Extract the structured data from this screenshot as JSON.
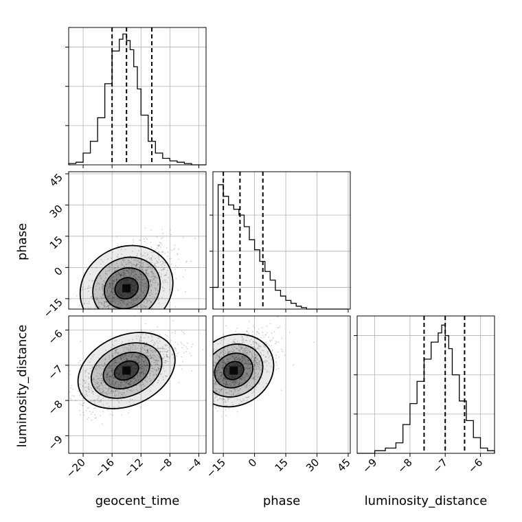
{
  "chart_data": [
    {
      "type": "histogram",
      "parameter": "geocent_time",
      "bin_edges": [
        -22,
        -21,
        -20,
        -19,
        -18,
        -17,
        -16,
        -15,
        -14.5,
        -14,
        -13.5,
        -13,
        -12.5,
        -12,
        -11,
        -10,
        -9,
        -8,
        -7,
        -6,
        -5,
        -4,
        -3
      ],
      "counts": [
        0.01,
        0.02,
        0.09,
        0.18,
        0.36,
        0.62,
        0.87,
        0.96,
        1.0,
        0.95,
        0.88,
        0.75,
        0.58,
        0.38,
        0.18,
        0.09,
        0.05,
        0.03,
        0.02,
        0.01,
        0.0,
        0.0
      ],
      "quantiles": [
        -16,
        -14,
        -10.5
      ],
      "xlim": [
        -22,
        -3
      ],
      "ylim": [
        0,
        1.05
      ],
      "xticks": [
        "−20",
        "−16",
        "−12",
        "−8",
        "−4"
      ],
      "xtick_values": [
        -20,
        -16,
        -12,
        -8,
        -4
      ],
      "ytick_values": [
        0.3,
        0.6,
        0.9
      ],
      "grid": true
    },
    {
      "type": "histogram",
      "parameter": "phase",
      "bin_edges": [
        -20,
        -17.5,
        -15,
        -12.5,
        -10,
        -7.5,
        -5,
        -2.5,
        0,
        2.5,
        5,
        7.5,
        10,
        12.5,
        15,
        17.5,
        20,
        22.5,
        25,
        27.5,
        30,
        32.5,
        35,
        37.5,
        40,
        42.5,
        45
      ],
      "counts": [
        0.15,
        0.86,
        0.78,
        0.72,
        0.69,
        0.65,
        0.57,
        0.48,
        0.41,
        0.33,
        0.26,
        0.2,
        0.13,
        0.09,
        0.06,
        0.04,
        0.02,
        0.01,
        0.0,
        0.0,
        0.0,
        0.0,
        0.0,
        0.0,
        0.0,
        0.0
      ],
      "quantiles": [
        -15,
        -7,
        4
      ],
      "xlim": [
        -20,
        46
      ],
      "ylim": [
        0,
        0.95
      ],
      "xticks": [
        "−15",
        "0",
        "15",
        "30",
        "45"
      ],
      "xtick_values": [
        -15,
        0,
        15,
        30,
        45
      ],
      "ytick_values": [
        0.15,
        0.4,
        0.65
      ],
      "grid": true
    },
    {
      "type": "histogram",
      "parameter": "luminosity_distance",
      "bin_edges": [
        -9.5,
        -9.0,
        -8.7,
        -8.4,
        -8.2,
        -8.0,
        -7.8,
        -7.6,
        -7.4,
        -7.2,
        -7.1,
        -7.0,
        -6.9,
        -6.8,
        -6.6,
        -6.4,
        -6.2,
        -6.0,
        -5.8,
        -5.6
      ],
      "counts": [
        0.0,
        0.02,
        0.04,
        0.08,
        0.22,
        0.38,
        0.55,
        0.72,
        0.85,
        0.92,
        0.98,
        0.9,
        0.8,
        0.6,
        0.4,
        0.25,
        0.12,
        0.04,
        0.02
      ],
      "quantiles": [
        -7.6,
        -7.0,
        -6.45
      ],
      "xlim": [
        -9.5,
        -5.6
      ],
      "ylim": [
        0,
        1.05
      ],
      "xticks": [
        "−9",
        "−8",
        "−7",
        "−6"
      ],
      "xtick_values": [
        -9,
        -8,
        -7,
        -6
      ],
      "ytick_values": [
        0.3,
        0.6,
        0.9
      ],
      "grid": true
    },
    {
      "type": "scatter",
      "x_parameter": "geocent_time",
      "y_parameter": "phase",
      "center": [
        -14,
        -10
      ],
      "spread": [
        3.0,
        10.0
      ],
      "correlation": 0.55,
      "xlim": [
        -22,
        -3
      ],
      "ylim": [
        -20,
        46
      ],
      "yticks": [
        "−15",
        "0",
        "15",
        "30",
        "45"
      ],
      "ytick_values": [
        -15,
        0,
        15,
        30,
        45
      ],
      "ylabel": "phase",
      "contour_levels": 4,
      "grid": true
    },
    {
      "type": "scatter",
      "x_parameter": "geocent_time",
      "y_parameter": "luminosity_distance",
      "center": [
        -14,
        -7.15
      ],
      "spread": [
        3.2,
        0.5
      ],
      "correlation": 0.6,
      "xlim": [
        -22,
        -3
      ],
      "ylim": [
        -9.5,
        -5.6
      ],
      "yticks": [
        "−9",
        "−8",
        "−7",
        "−6"
      ],
      "ytick_values": [
        -9,
        -8,
        -7,
        -6
      ],
      "ylabel": "luminosity_distance",
      "contour_levels": 4,
      "grid": true
    },
    {
      "type": "scatter",
      "x_parameter": "phase",
      "y_parameter": "luminosity_distance",
      "center": [
        -10,
        -7.15
      ],
      "spread": [
        9.0,
        0.5
      ],
      "correlation": 0.55,
      "xlim": [
        -20,
        46
      ],
      "ylim": [
        -9.5,
        -5.6
      ],
      "contour_levels": 4,
      "grid": true
    }
  ],
  "x_axis_labels": [
    "geocent_time",
    "phase",
    "luminosity_distance"
  ],
  "colors": {
    "line": "#000000",
    "grid": "#b0b0b0",
    "background": "#ffffff"
  }
}
